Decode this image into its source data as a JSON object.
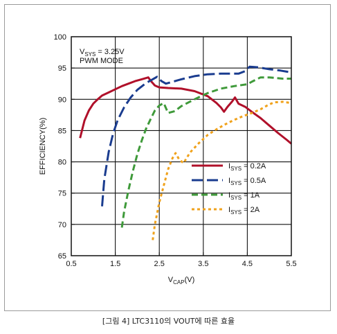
{
  "caption": "[그림 4] LTC3110의 VOUT에 따른 효율",
  "chart_data": {
    "type": "line",
    "title": "",
    "xlabel": "V",
    "xlabel_sub": "CAP",
    "xlabel_unit": "(V)",
    "ylabel": "EFFICIENCY(%)",
    "xlim": [
      0.5,
      5.5
    ],
    "ylim": [
      65,
      100
    ],
    "xticks": [
      0.5,
      1.5,
      2.5,
      3.5,
      4.5,
      5.5
    ],
    "xtick_labels": [
      "0.5",
      "1.5",
      "2.5",
      "3.5",
      "4.5",
      "5.5"
    ],
    "xgrid": [
      1.5,
      2.5,
      3.5,
      4.5
    ],
    "yticks": [
      65,
      70,
      75,
      80,
      85,
      90,
      95,
      100
    ],
    "ytick_labels": [
      "65",
      "70",
      "75",
      "80",
      "85",
      "90",
      "95",
      "100"
    ],
    "grid": true,
    "annotation": {
      "line1_main": "V",
      "line1_sub": "SYS",
      "line1_rest": " = 3.25V",
      "line2": "PWM MODE"
    },
    "legend_position": "bottom-right",
    "series": [
      {
        "name": "ISYS = 0.2A",
        "label_main": "I",
        "label_sub": "SYS",
        "label_rest": " = 0.2A",
        "color": "#b0102a",
        "dash": "solid",
        "x": [
          0.7,
          0.8,
          0.9,
          1.0,
          1.1,
          1.2,
          1.35,
          1.5,
          1.65,
          1.8,
          1.95,
          2.1,
          2.25,
          2.3,
          2.4,
          2.5,
          2.7,
          3.0,
          3.3,
          3.6,
          3.8,
          3.9,
          3.97,
          4.05,
          4.15,
          4.22,
          4.3,
          4.45,
          4.6,
          4.8,
          5.0,
          5.2,
          5.4,
          5.5
        ],
        "y": [
          83.8,
          86.6,
          88.2,
          89.3,
          90.0,
          90.6,
          91.1,
          91.6,
          92.1,
          92.5,
          92.9,
          93.2,
          93.5,
          93.0,
          92.2,
          91.9,
          91.8,
          91.7,
          91.3,
          90.5,
          89.4,
          88.7,
          88.0,
          88.8,
          89.6,
          90.3,
          89.3,
          88.8,
          88.0,
          87.0,
          85.8,
          84.6,
          83.5,
          82.9
        ]
      },
      {
        "name": "ISYS = 0.5A",
        "label_main": "I",
        "label_sub": "SYS",
        "label_rest": " = 0.5A",
        "color": "#1a3c8f",
        "dash": "long",
        "x": [
          1.2,
          1.25,
          1.35,
          1.45,
          1.55,
          1.7,
          1.85,
          2.0,
          2.2,
          2.35,
          2.45,
          2.55,
          2.65,
          2.8,
          3.0,
          3.3,
          3.6,
          3.9,
          4.3,
          4.45,
          4.55,
          4.75,
          5.0,
          5.25,
          5.5
        ],
        "y": [
          72.9,
          77.2,
          81.6,
          84.5,
          86.6,
          88.7,
          90.3,
          91.5,
          92.6,
          93.2,
          93.6,
          92.9,
          92.5,
          92.8,
          93.2,
          93.7,
          94.0,
          94.1,
          94.1,
          94.5,
          95.2,
          95.1,
          94.8,
          94.6,
          94.3
        ]
      },
      {
        "name": "ISYS = 1A",
        "label_main": "I",
        "label_sub": "SYS",
        "label_rest": " = 1A",
        "color": "#3f9a3a",
        "dash": "medium",
        "x": [
          1.65,
          1.7,
          1.8,
          1.9,
          2.0,
          2.1,
          2.2,
          2.3,
          2.4,
          2.5,
          2.6,
          2.7,
          2.85,
          3.0,
          3.3,
          3.6,
          3.9,
          4.2,
          4.5,
          4.6,
          4.8,
          5.0,
          5.3,
          5.5
        ],
        "y": [
          69.5,
          72.0,
          75.5,
          78.5,
          81.2,
          83.4,
          85.3,
          86.8,
          88.2,
          89.0,
          89.4,
          87.8,
          88.1,
          88.9,
          90.0,
          91.0,
          91.7,
          92.1,
          92.4,
          92.8,
          93.5,
          93.5,
          93.3,
          93.3
        ]
      },
      {
        "name": "ISYS = 2A",
        "label_main": "I",
        "label_sub": "SYS",
        "label_rest": " = 2A",
        "color": "#f0a21c",
        "dash": "short",
        "x": [
          2.35,
          2.4,
          2.5,
          2.6,
          2.7,
          2.8,
          2.87,
          2.95,
          3.05,
          3.2,
          3.4,
          3.6,
          3.8,
          4.0,
          4.2,
          4.4,
          4.6,
          4.8,
          4.95,
          5.1,
          5.3,
          5.5
        ],
        "y": [
          67.5,
          70.0,
          73.5,
          76.2,
          78.8,
          80.6,
          81.4,
          80.4,
          79.8,
          81.5,
          83.0,
          84.3,
          85.2,
          86.0,
          86.7,
          87.3,
          87.8,
          88.4,
          89.0,
          89.5,
          89.6,
          89.4
        ]
      }
    ]
  }
}
